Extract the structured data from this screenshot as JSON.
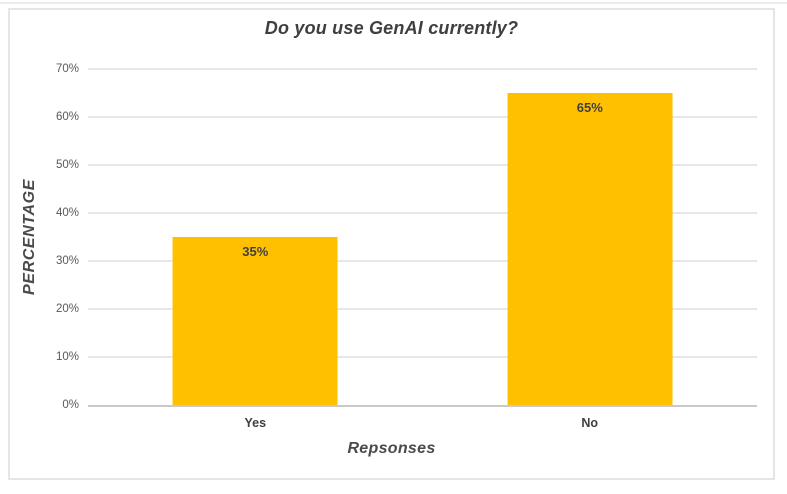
{
  "chart_data": {
    "type": "bar",
    "title": "Do you use GenAI currently?",
    "xlabel": "Repsonses",
    "ylabel": "PERCENTAGE",
    "categories": [
      "Yes",
      "No"
    ],
    "values": [
      35,
      65
    ],
    "data_labels": [
      "35%",
      "65%"
    ],
    "y_ticks": [
      {
        "value": 0,
        "label": "0%"
      },
      {
        "value": 10,
        "label": "10%"
      },
      {
        "value": 20,
        "label": "20%"
      },
      {
        "value": 30,
        "label": "30%"
      },
      {
        "value": 40,
        "label": "40%"
      },
      {
        "value": 50,
        "label": "50%"
      },
      {
        "value": 60,
        "label": "60%"
      },
      {
        "value": 70,
        "label": "70%"
      }
    ],
    "ylim": [
      0,
      70
    ],
    "grid": "horizontal",
    "legend": "none",
    "colors": {
      "bar": "#FFC000",
      "title_text": "#3F3F3F",
      "data_label_text": "#404040",
      "tick_text": "#595959",
      "gridline": "#E7E7E7",
      "baseline": "#C9C9C9",
      "frame_border": "#E5E5E5"
    }
  }
}
